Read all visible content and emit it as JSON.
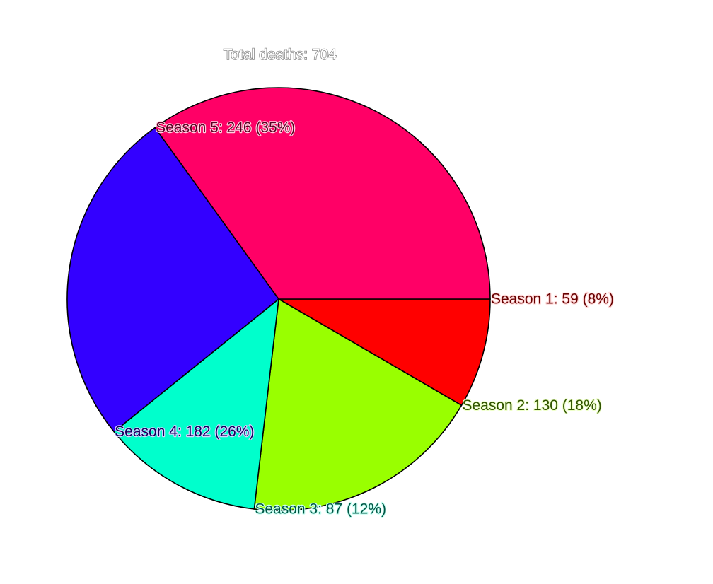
{
  "chart_data": {
    "type": "pie",
    "total_label": "Total deaths: 704",
    "total": 704,
    "start_angle_deg": 0,
    "direction": "clockwise",
    "slices": [
      {
        "label": "Season 1",
        "value": 59,
        "percent": "8%",
        "text": "Season 1: 59 (8%)",
        "color": "#ff0000",
        "label_color": "#660000",
        "outline_color": "#ffd6d6"
      },
      {
        "label": "Season 2",
        "value": 130,
        "percent": "18%",
        "text": "Season 2: 130 (18%)",
        "color": "#99ff00",
        "label_color": "#2f5200",
        "outline_color": "#eeffc8"
      },
      {
        "label": "Season 3",
        "value": 87,
        "percent": "12%",
        "text": "Season 3: 87 (12%)",
        "color": "#00ffcc",
        "label_color": "#005544",
        "outline_color": "#c8fff3"
      },
      {
        "label": "Season 4",
        "value": 182,
        "percent": "26%",
        "text": "Season 4: 182 (26%)",
        "color": "#3300ff",
        "label_color": "#0f005a",
        "outline_color": "#d8d0ff"
      },
      {
        "label": "Season 5",
        "value": 246,
        "percent": "35%",
        "text": "Season 5: 246 (35%)",
        "color": "#ff0066",
        "label_color": "#5a0022",
        "outline_color": "#ffd0e0"
      }
    ]
  }
}
